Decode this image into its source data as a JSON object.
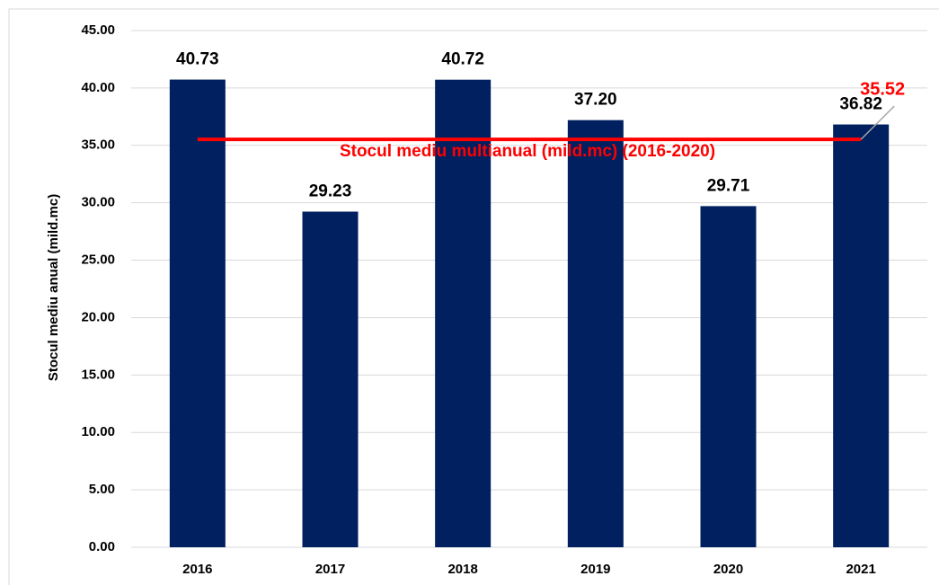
{
  "chart_data": {
    "type": "bar",
    "y_label": "Stocul mediu anual (mild.mc)",
    "categories": [
      "2016",
      "2017",
      "2018",
      "2019",
      "2020",
      "2021"
    ],
    "values": [
      40.73,
      29.23,
      40.72,
      37.2,
      29.71,
      36.82
    ],
    "value_labels": [
      "40.73",
      "29.23",
      "40.72",
      "37.20",
      "29.71",
      "36.82"
    ],
    "color": "#002060",
    "ylim": [
      0,
      45
    ],
    "yticks": [
      {
        "value": 0,
        "label": "0.00"
      },
      {
        "value": 5,
        "label": "5.00"
      },
      {
        "value": 10,
        "label": "10.00"
      },
      {
        "value": 15,
        "label": "15.00"
      },
      {
        "value": 20,
        "label": "20.00"
      },
      {
        "value": 25,
        "label": "25.00"
      },
      {
        "value": 30,
        "label": "30.00"
      },
      {
        "value": 35,
        "label": "35.00"
      },
      {
        "value": 40,
        "label": "40.00"
      },
      {
        "value": 45,
        "label": "45.00"
      }
    ],
    "grid": true,
    "reference_line": {
      "value": 35.52,
      "label": "Stocul mediu multianual (mild.mc) (2016-2020)",
      "color": "#ff0000"
    }
  }
}
